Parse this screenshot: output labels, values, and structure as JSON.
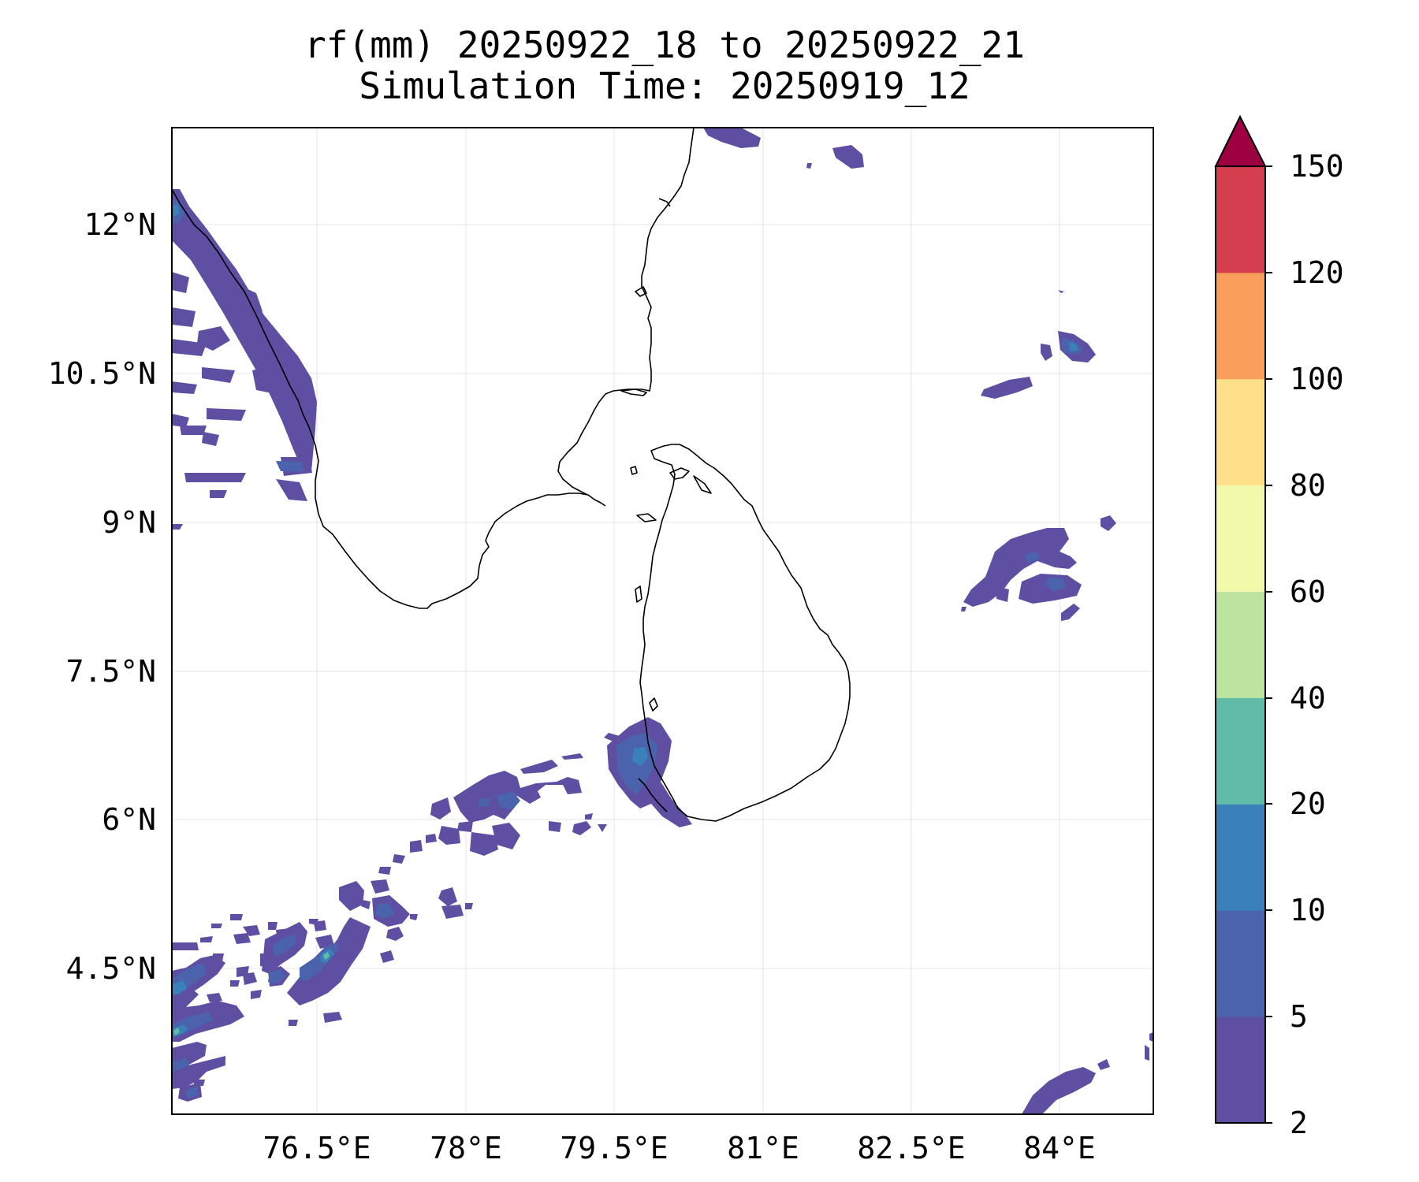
{
  "title": {
    "line1": "rf(mm) 20250922_18 to 20250922_21",
    "line2": "Simulation Time: 20250919_12"
  },
  "map": {
    "lon_range": [
      75.0,
      84.9
    ],
    "lat_range": [
      2.7,
      12.65
    ],
    "lon_ticks": [
      76.5,
      78,
      79.5,
      81,
      82.5,
      84
    ],
    "lon_tick_labels": [
      "76.5°E",
      "78°E",
      "79.5°E",
      "81°E",
      "82.5°E",
      "84°E"
    ],
    "lat_ticks": [
      12,
      10.5,
      9,
      7.5,
      6,
      4.5
    ],
    "lat_tick_labels": [
      "12°N",
      "10.5°N",
      "9°N",
      "7.5°N",
      "6°N",
      "4.5°N"
    ],
    "gridlines": true,
    "coastline_color": "#000000"
  },
  "colorbar": {
    "levels": [
      2,
      5,
      10,
      20,
      40,
      60,
      80,
      100,
      120,
      150
    ],
    "tick_labels": [
      "2",
      "5",
      "10",
      "20",
      "40",
      "60",
      "80",
      "100",
      "120",
      "150"
    ],
    "colors": [
      "#5e4fa2",
      "#4a63ac",
      "#3a80b9",
      "#60bba8",
      "#bde3a0",
      "#f3f9ab",
      "#fde089",
      "#f99f5b",
      "#d53e4f"
    ],
    "extend_color": "#9e0142",
    "extend": "max"
  }
}
